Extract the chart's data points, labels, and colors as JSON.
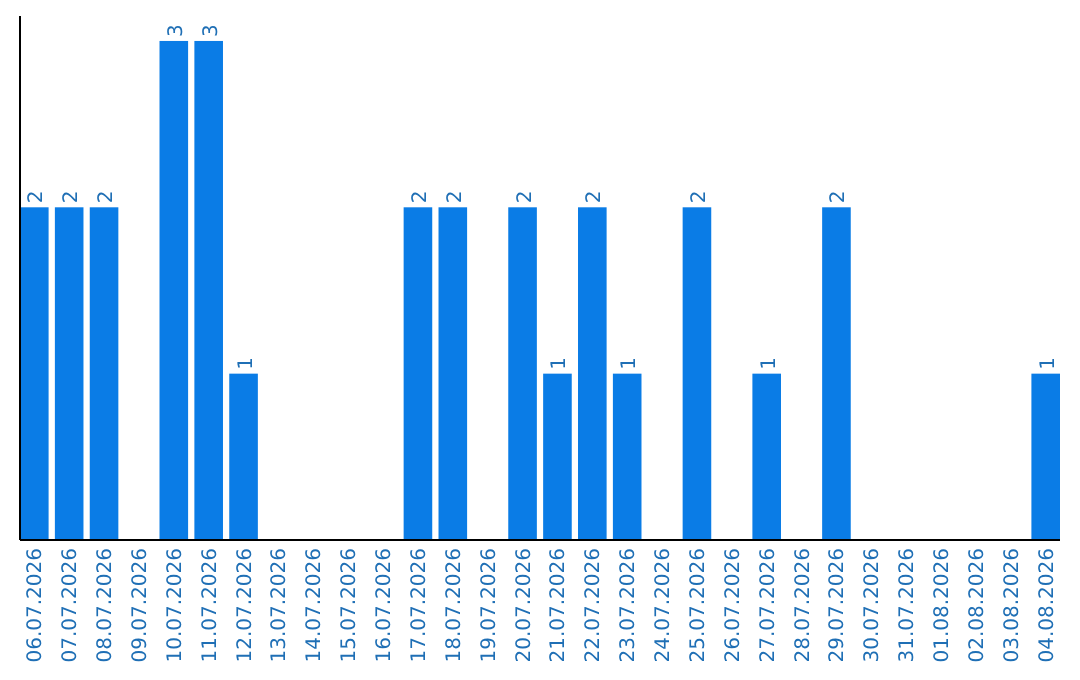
{
  "chart_data": {
    "type": "bar",
    "categories": [
      "06.07.2026",
      "07.07.2026",
      "08.07.2026",
      "09.07.2026",
      "10.07.2026",
      "11.07.2026",
      "12.07.2026",
      "13.07.2026",
      "14.07.2026",
      "15.07.2026",
      "16.07.2026",
      "17.07.2026",
      "18.07.2026",
      "19.07.2026",
      "20.07.2026",
      "21.07.2026",
      "22.07.2026",
      "23.07.2026",
      "24.07.2026",
      "25.07.2026",
      "26.07.2026",
      "27.07.2026",
      "28.07.2026",
      "29.07.2026",
      "30.07.2026",
      "31.07.2026",
      "01.08.2026",
      "02.08.2026",
      "03.08.2026",
      "04.08.2026"
    ],
    "values": [
      2,
      2,
      2,
      0,
      3,
      3,
      1,
      0,
      0,
      0,
      0,
      2,
      2,
      0,
      2,
      1,
      2,
      1,
      0,
      2,
      0,
      1,
      0,
      2,
      0,
      0,
      0,
      0,
      0,
      1
    ],
    "value_labels": [
      "2",
      "2",
      "2",
      null,
      "3",
      "3",
      "1",
      null,
      null,
      null,
      null,
      "2",
      "2",
      null,
      "2",
      "1",
      "2",
      "1",
      null,
      "2",
      null,
      "1",
      null,
      "2",
      null,
      null,
      null,
      null,
      null,
      "1"
    ],
    "color": "#0a7ce6",
    "tick_labels": "x",
    "grid": false
  }
}
